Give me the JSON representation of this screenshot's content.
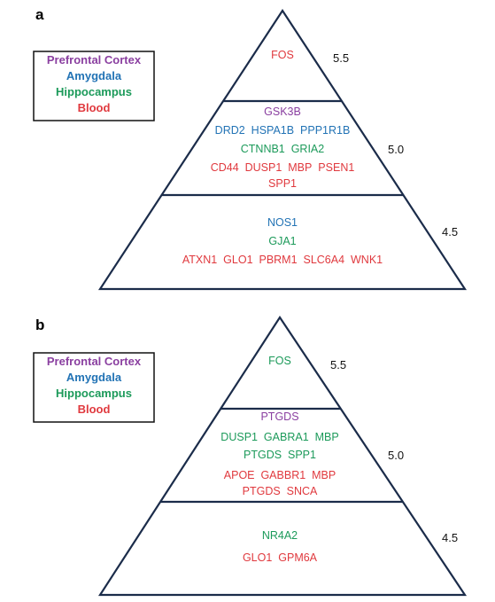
{
  "colors": {
    "prefrontal": "#8a3fa0",
    "amygdala": "#2273b5",
    "hippocampus": "#1c9a5a",
    "blood": "#e0393e",
    "outline": "#1b2c4a"
  },
  "legend": {
    "prefrontal": "Prefrontal Cortex",
    "amygdala": "Amygdala",
    "hippocampus": "Hippocampus",
    "blood": "Blood"
  },
  "panels": [
    {
      "letter": "a",
      "tiers": [
        {
          "score": "5.5",
          "lines": [
            [
              {
                "text": "FOS",
                "tissue": "blood"
              }
            ]
          ]
        },
        {
          "score": "5.0",
          "lines": [
            [
              {
                "text": "GSK3B",
                "tissue": "prefrontal"
              }
            ],
            [
              {
                "text": "DRD2",
                "tissue": "amygdala"
              },
              {
                "text": "HSPA1B",
                "tissue": "amygdala"
              },
              {
                "text": "PPP1R1B",
                "tissue": "amygdala"
              }
            ],
            [
              {
                "text": "CTNNB1",
                "tissue": "hippocampus"
              },
              {
                "text": "GRIA2",
                "tissue": "hippocampus"
              }
            ],
            [
              {
                "text": "CD44",
                "tissue": "blood"
              },
              {
                "text": "DUSP1",
                "tissue": "blood"
              },
              {
                "text": "MBP",
                "tissue": "blood"
              },
              {
                "text": "PSEN1",
                "tissue": "blood"
              }
            ],
            [
              {
                "text": "SPP1",
                "tissue": "blood"
              }
            ]
          ]
        },
        {
          "score": "4.5",
          "lines": [
            [
              {
                "text": "NOS1",
                "tissue": "amygdala"
              }
            ],
            [
              {
                "text": "GJA1",
                "tissue": "hippocampus"
              }
            ],
            [
              {
                "text": "ATXN1",
                "tissue": "blood"
              },
              {
                "text": "GLO1",
                "tissue": "blood"
              },
              {
                "text": "PBRM1",
                "tissue": "blood"
              },
              {
                "text": "SLC6A4",
                "tissue": "blood"
              },
              {
                "text": "WNK1",
                "tissue": "blood"
              }
            ]
          ]
        }
      ]
    },
    {
      "letter": "b",
      "tiers": [
        {
          "score": "5.5",
          "lines": [
            [
              {
                "text": "FOS",
                "tissue": "hippocampus"
              }
            ]
          ]
        },
        {
          "score": "5.0",
          "lines": [
            [
              {
                "text": "PTGDS",
                "tissue": "prefrontal"
              }
            ],
            [
              {
                "text": "DUSP1",
                "tissue": "hippocampus"
              },
              {
                "text": "GABRA1",
                "tissue": "hippocampus"
              },
              {
                "text": "MBP",
                "tissue": "hippocampus"
              }
            ],
            [
              {
                "text": "PTGDS",
                "tissue": "hippocampus"
              },
              {
                "text": "SPP1",
                "tissue": "hippocampus"
              }
            ],
            [
              {
                "text": "APOE",
                "tissue": "blood"
              },
              {
                "text": "GABBR1",
                "tissue": "blood"
              },
              {
                "text": "MBP",
                "tissue": "blood"
              }
            ],
            [
              {
                "text": "PTGDS",
                "tissue": "blood"
              },
              {
                "text": "SNCA",
                "tissue": "blood"
              }
            ]
          ]
        },
        {
          "score": "4.5",
          "lines": [
            [
              {
                "text": "NR4A2",
                "tissue": "hippocampus"
              }
            ],
            [
              {
                "text": "GLO1",
                "tissue": "blood"
              },
              {
                "text": "GPM6A",
                "tissue": "blood"
              }
            ]
          ]
        }
      ]
    }
  ]
}
